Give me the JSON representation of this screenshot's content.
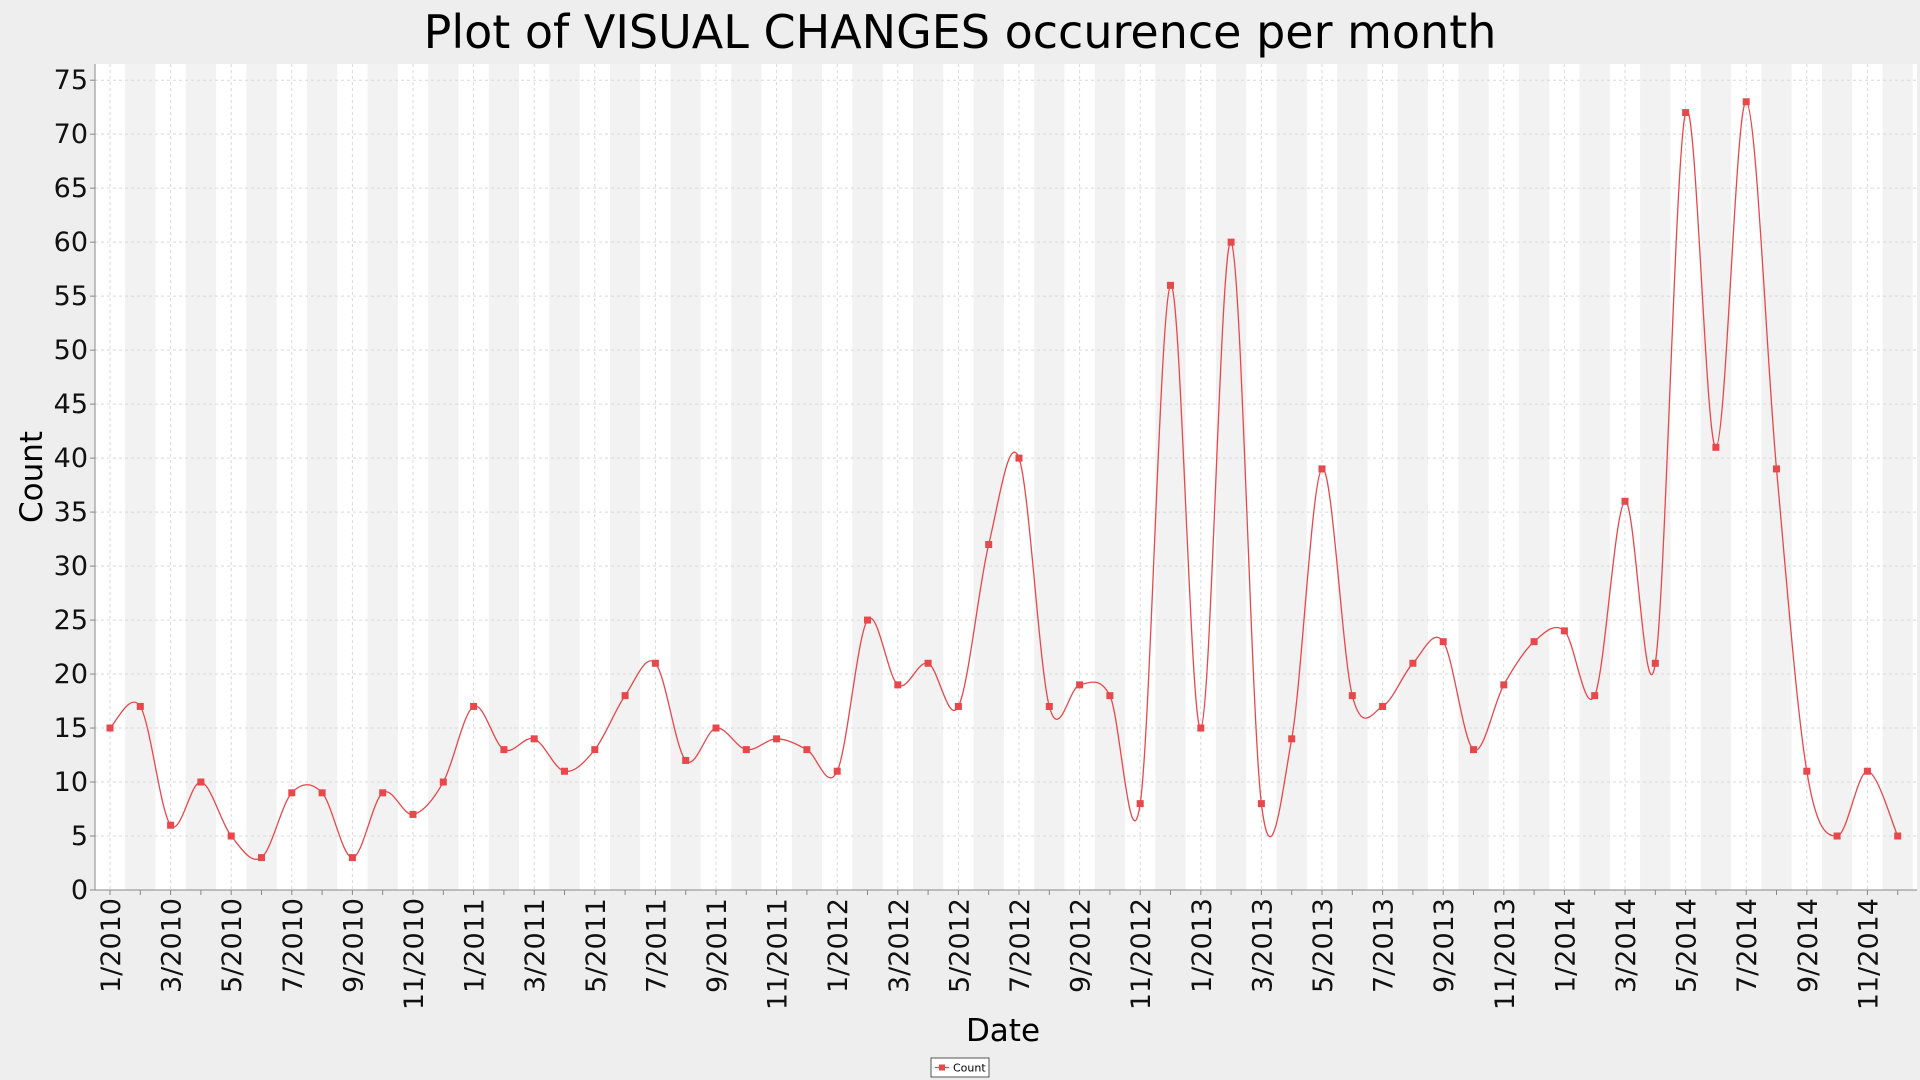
{
  "chart_data": {
    "type": "line",
    "title": "Plot of VISUAL CHANGES occurence per month",
    "xlabel": "Date",
    "ylabel": "Count",
    "ylim": [
      0,
      76.5
    ],
    "yticks": [
      0,
      5,
      10,
      15,
      20,
      25,
      30,
      35,
      40,
      45,
      50,
      55,
      60,
      65,
      70,
      75
    ],
    "x": [
      "1/2010",
      "2/2010",
      "3/2010",
      "4/2010",
      "5/2010",
      "6/2010",
      "7/2010",
      "8/2010",
      "9/2010",
      "10/2010",
      "11/2010",
      "12/2010",
      "1/2011",
      "2/2011",
      "3/2011",
      "4/2011",
      "5/2011",
      "6/2011",
      "7/2011",
      "8/2011",
      "9/2011",
      "10/2011",
      "11/2011",
      "12/2011",
      "1/2012",
      "2/2012",
      "3/2012",
      "4/2012",
      "5/2012",
      "6/2012",
      "7/2012",
      "8/2012",
      "9/2012",
      "10/2012",
      "11/2012",
      "12/2012",
      "1/2013",
      "2/2013",
      "3/2013",
      "4/2013",
      "5/2013",
      "6/2013",
      "7/2013",
      "8/2013",
      "9/2013",
      "10/2013",
      "11/2013",
      "12/2013",
      "1/2014",
      "2/2014",
      "3/2014",
      "4/2014",
      "5/2014",
      "6/2014",
      "7/2014",
      "8/2014",
      "9/2014",
      "10/2014",
      "11/2014",
      "12/2014"
    ],
    "xtick_labels": [
      "1/2010",
      "3/2010",
      "5/2010",
      "7/2010",
      "9/2010",
      "11/2010",
      "1/2011",
      "3/2011",
      "5/2011",
      "7/2011",
      "9/2011",
      "11/2011",
      "1/2012",
      "3/2012",
      "5/2012",
      "7/2012",
      "9/2012",
      "11/2012",
      "1/2013",
      "3/2013",
      "5/2013",
      "7/2013",
      "9/2013",
      "11/2013",
      "1/2014",
      "3/2014",
      "5/2014",
      "7/2014",
      "9/2014",
      "11/2014"
    ],
    "series": [
      {
        "name": "Count",
        "color": "#e8474b",
        "values": [
          15,
          17,
          6,
          10,
          5,
          3,
          9,
          9,
          3,
          9,
          7,
          10,
          17,
          13,
          14,
          11,
          13,
          18,
          21,
          12,
          15,
          13,
          14,
          13,
          11,
          25,
          19,
          21,
          17,
          32,
          40,
          17,
          19,
          18,
          8,
          56,
          15,
          60,
          8,
          14,
          39,
          18,
          17,
          21,
          23,
          13,
          19,
          23,
          24,
          18,
          36,
          21,
          72,
          41,
          73,
          39,
          11,
          5,
          11,
          5
        ]
      }
    ],
    "grid": true,
    "legend": "bottom-center",
    "background_bands": "alternating-month"
  }
}
